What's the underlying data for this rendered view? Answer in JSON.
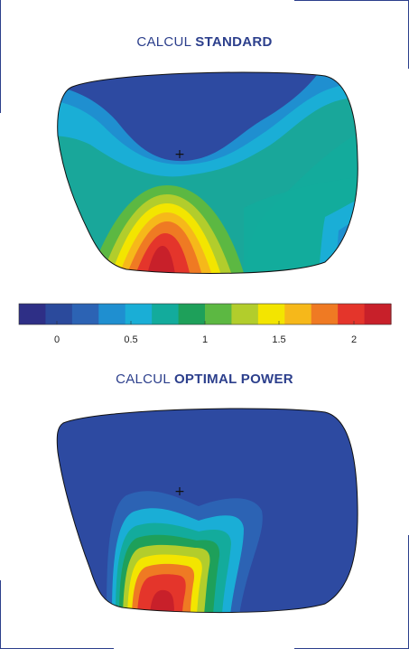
{
  "standard": {
    "title_prefix": "CALCUL",
    "title_strong": "STANDARD",
    "center_mark": "+"
  },
  "optimal": {
    "title_prefix": "CALCUL",
    "title_strong": "OPTIMAL POWER",
    "center_mark": "+"
  },
  "colorbar": {
    "ticks": [
      "0",
      "0.5",
      "1",
      "1.5",
      "2"
    ],
    "colors": [
      "#2e2f86",
      "#2b4a9c",
      "#2c63b4",
      "#1f8fd0",
      "#1aaed6",
      "#13ab9c",
      "#1ea05a",
      "#5cb842",
      "#b2cd2c",
      "#f3e500",
      "#f6b81a",
      "#ef7a23",
      "#e4352b",
      "#c8202a"
    ]
  },
  "palette": {
    "navy": "#2d4aa1",
    "blue": "#1f8fd0",
    "cyan": "#17a9d9",
    "teal": "#13ab9c",
    "green": "#22a05a",
    "lime": "#9fc93a",
    "yellow": "#f3e500",
    "orange": "#f08a23",
    "red": "#e4352b",
    "darkred": "#c8202a",
    "frame": "#2c3f8c"
  }
}
